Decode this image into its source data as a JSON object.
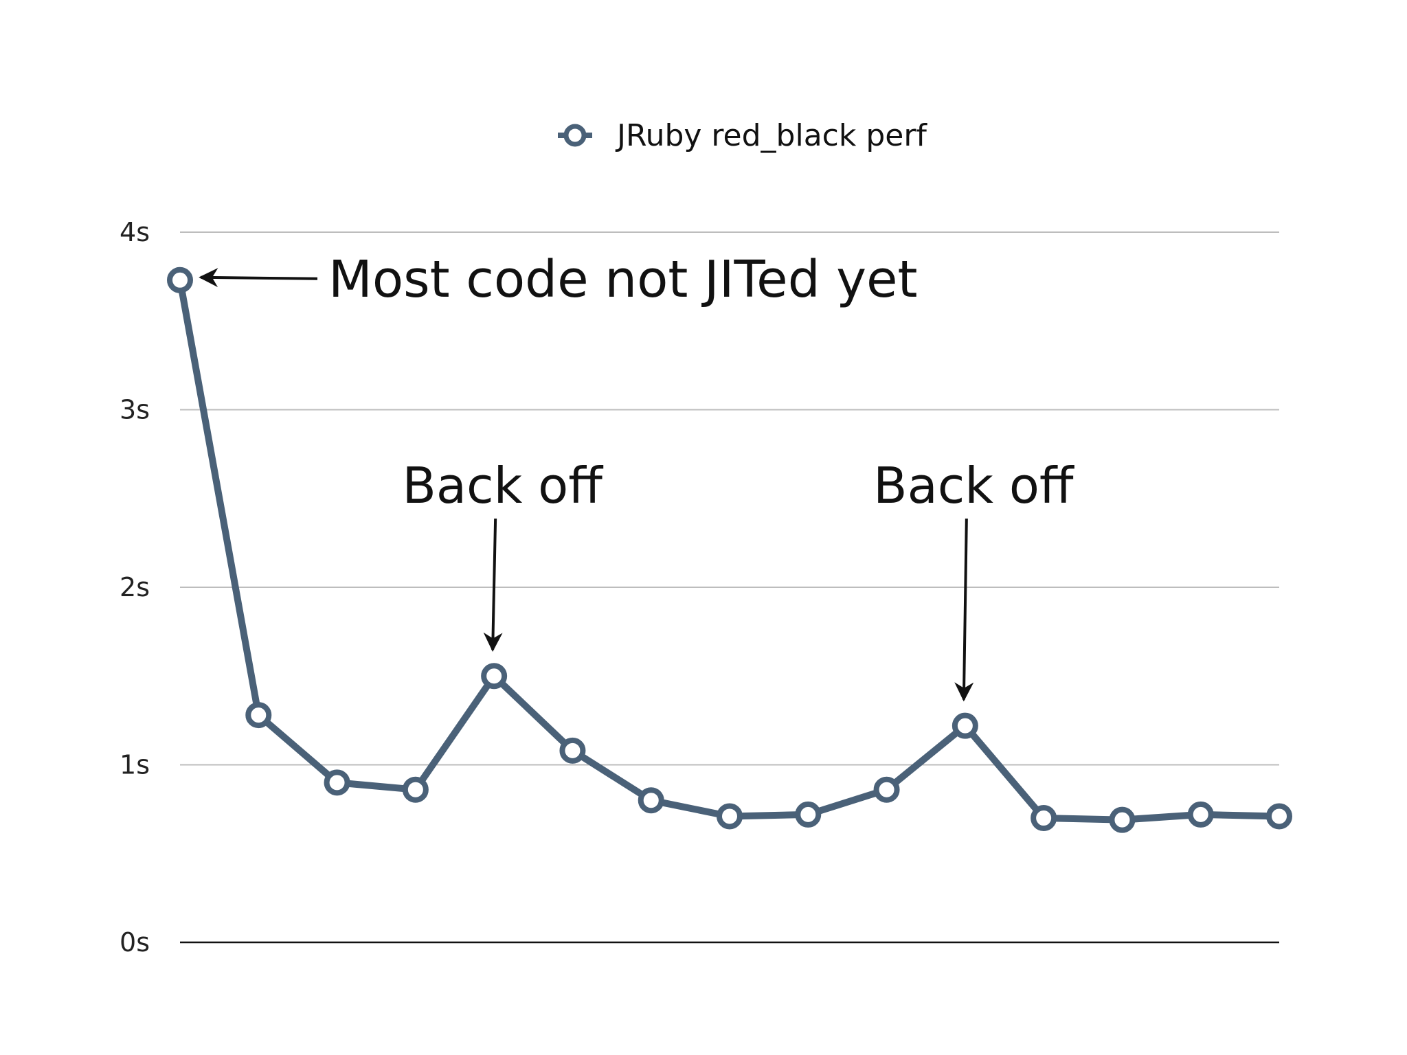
{
  "chart_data": {
    "type": "line",
    "title": "",
    "xlabel": "",
    "ylabel": "",
    "ylim": [
      0,
      4
    ],
    "yticks": [
      {
        "value": 0,
        "label": "0s"
      },
      {
        "value": 1,
        "label": "1s"
      },
      {
        "value": 2,
        "label": "2s"
      },
      {
        "value": 3,
        "label": "3s"
      },
      {
        "value": 4,
        "label": "4s"
      }
    ],
    "grid": true,
    "legend": "top-center",
    "x": [
      1,
      2,
      3,
      4,
      5,
      6,
      7,
      8,
      9,
      10,
      11,
      12,
      13,
      14,
      15
    ],
    "series": [
      {
        "name": "JRuby red_black perf",
        "color": "#4a6178",
        "values": [
          3.73,
          1.28,
          0.9,
          0.86,
          1.5,
          1.08,
          0.8,
          0.71,
          0.72,
          0.86,
          1.22,
          0.7,
          0.69,
          0.72,
          0.71
        ]
      }
    ],
    "annotations": [
      {
        "text": "Most code not JITed yet",
        "point_index": 0,
        "direction": "left"
      },
      {
        "text": "Back off",
        "point_index": 4,
        "direction": "down"
      },
      {
        "text": "Back off",
        "point_index": 10,
        "direction": "down"
      }
    ]
  }
}
